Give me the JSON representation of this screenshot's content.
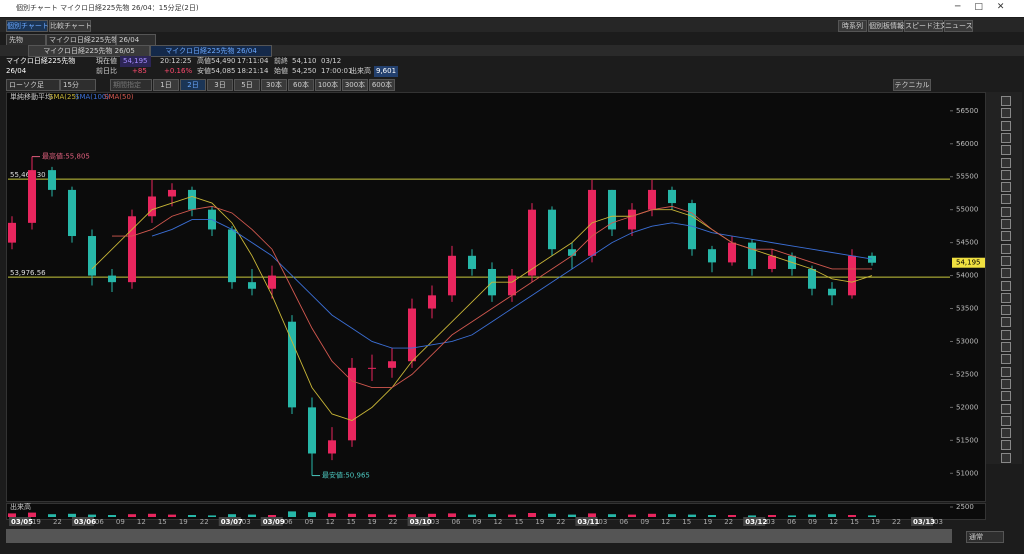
{
  "window": {
    "title": "個別チャート マイクロ日経225先物 26/04：15分足(2日)"
  },
  "tabs": [
    "個別チャート",
    "比較チャート"
  ],
  "selectors": [
    "先物",
    "マイクロ日経225先物",
    "26/04"
  ],
  "toolbar_buttons": [
    "時系列",
    "個別板情報",
    "スピード注文",
    "ニュース"
  ],
  "sub_tabs": [
    "マイクロ日経225先物 26/05",
    "マイクロ日経225先物 26/04"
  ],
  "quote": {
    "name": "マイクロ日経225先物",
    "contract": "26/04",
    "current_label": "現在値",
    "current": "54,195",
    "time": "20:12:25",
    "change_label": "前日比",
    "change": "+85",
    "change_pct": "+0.16%",
    "high_label": "高値",
    "high": "54,490",
    "high_time": "17:11:04",
    "low_label": "安値",
    "low": "54,085",
    "low_time": "18:21:14",
    "prev_label": "前終",
    "prev": "54,110",
    "prev_date": "03/12",
    "open_label": "始値",
    "open": "54,250",
    "open_time": "17:00:01",
    "volume_label": "出来高",
    "volume": "9,601"
  },
  "chart_controls": {
    "chart_type": "ローソク足",
    "interval": "15分",
    "period": "期間指定",
    "ranges": [
      "1日",
      "2日",
      "3日",
      "5日",
      "30本",
      "60本",
      "100本",
      "300本",
      "600本"
    ],
    "technical": "テクニカル",
    "view": "通常"
  },
  "chart_data": {
    "type": "candlestick",
    "indicator": "単純移動平均",
    "up_color": "#e8265e",
    "down_color": "#27b7a8",
    "open": [
      54500,
      54800,
      55600,
      55300,
      54600,
      54000,
      53900,
      54900,
      55200,
      55300,
      55000,
      54700,
      53900,
      53800,
      53300,
      52000,
      51300,
      51500,
      52600,
      52600,
      52700,
      53500,
      53700,
      54300,
      54100,
      53700,
      54000,
      55000,
      54400,
      54300,
      55300,
      54700,
      55000,
      55300,
      55100,
      54400,
      54200,
      54500,
      54100,
      54300,
      54100,
      53800,
      53700,
      54300
    ],
    "high": [
      54900,
      55805,
      55650,
      55350,
      54700,
      54100,
      55000,
      55450,
      55400,
      55350,
      55050,
      54750,
      54100,
      54150,
      53400,
      52150,
      51700,
      52750,
      52800,
      52900,
      53650,
      53850,
      54450,
      54400,
      54200,
      54100,
      55100,
      55050,
      54500,
      55450,
      55300,
      55100,
      55450,
      55350,
      55150,
      54450,
      54600,
      54550,
      54400,
      54350,
      54150,
      53900,
      54400,
      54350
    ],
    "low": [
      54400,
      54700,
      55200,
      54500,
      53850,
      53750,
      53800,
      54800,
      55050,
      54900,
      54600,
      53800,
      53700,
      53650,
      51900,
      50965,
      51200,
      51400,
      52400,
      52450,
      52600,
      53350,
      53600,
      54000,
      53600,
      53600,
      53900,
      54300,
      54100,
      54200,
      54600,
      54600,
      54900,
      55000,
      54300,
      54050,
      54150,
      54000,
      54050,
      54000,
      53700,
      53550,
      53650,
      54150
    ],
    "close": [
      54800,
      55600,
      55300,
      54600,
      54000,
      53900,
      54900,
      55200,
      55300,
      55000,
      54700,
      53900,
      53800,
      54000,
      52000,
      51300,
      51500,
      52600,
      52600,
      52700,
      53500,
      53700,
      54300,
      54100,
      53700,
      54000,
      55000,
      54400,
      54300,
      55300,
      54700,
      55000,
      55300,
      55100,
      54400,
      54200,
      54500,
      54100,
      54300,
      54100,
      53800,
      53700,
      54300,
      54195
    ],
    "series": [
      {
        "name": "SMA(25)",
        "color": "#c9b637",
        "values": [
          null,
          null,
          null,
          null,
          54100,
          54400,
          54700,
          55000,
          55100,
          55200,
          55100,
          54800,
          54300,
          53700,
          53000,
          52300,
          51900,
          51800,
          52000,
          52300,
          52700,
          53000,
          53300,
          53600,
          53900,
          53900,
          54100,
          54300,
          54500,
          54800,
          54900,
          54900,
          55000,
          55000,
          54900,
          54700,
          54500,
          54400,
          54300,
          54200,
          54100,
          53950,
          53900,
          54000
        ]
      },
      {
        "name": "SMA(100)",
        "color": "#3b6fd6",
        "values": [
          null,
          null,
          null,
          null,
          null,
          null,
          null,
          54600,
          54700,
          54850,
          54850,
          54700,
          54500,
          54300,
          54000,
          53700,
          53400,
          53200,
          53000,
          52900,
          52900,
          52950,
          53000,
          53100,
          53300,
          53500,
          53700,
          53900,
          54100,
          54300,
          54500,
          54650,
          54750,
          54800,
          54750,
          54650,
          54600,
          54550,
          54500,
          54450,
          54400,
          54350,
          54300,
          54250
        ]
      },
      {
        "name": "SMA(50)",
        "color": "#d2584f",
        "values": [
          null,
          null,
          null,
          null,
          null,
          54600,
          54600,
          54700,
          54900,
          55000,
          55050,
          54950,
          54700,
          54400,
          53800,
          53200,
          52700,
          52400,
          52300,
          52300,
          52500,
          52800,
          53100,
          53300,
          53500,
          53700,
          53900,
          54100,
          54300,
          54600,
          54800,
          54900,
          55000,
          55050,
          54950,
          54700,
          54500,
          54400,
          54400,
          54300,
          54200,
          54100,
          54100,
          54100
        ]
      }
    ],
    "ylim": [
      50640,
      56740
    ],
    "yticks": [
      51000,
      51500,
      52000,
      52500,
      53000,
      53500,
      54000,
      54500,
      55000,
      55500,
      56000,
      56500
    ],
    "hlines": [
      {
        "value": 55464.3,
        "label": "55,464.30"
      },
      {
        "value": 53976.56,
        "label": "53,976.56"
      }
    ],
    "line_color": "#c8c83c",
    "annotations": [
      {
        "value": 55805,
        "label": "最高値:55,805"
      },
      {
        "value": 50965,
        "label": "最安値:50,965"
      }
    ],
    "last_price": {
      "value": 54195,
      "label": "54,195"
    },
    "volume": {
      "label": "出来高",
      "ylim": [
        0,
        2500
      ],
      "yticks": [
        2500
      ],
      "values": [
        900,
        1100,
        700,
        800,
        600,
        500,
        700,
        800,
        600,
        500,
        400,
        700,
        600,
        500,
        1400,
        1200,
        900,
        800,
        700,
        600,
        700,
        800,
        900,
        600,
        700,
        600,
        1000,
        800,
        600,
        900,
        700,
        600,
        800,
        700,
        600,
        500,
        500,
        400,
        500,
        400,
        600,
        700,
        500,
        400
      ]
    },
    "x_tick_labels": [
      "03/05",
      "19",
      "22",
      "03/06",
      "06",
      "09",
      "12",
      "15",
      "19",
      "22",
      "03/07",
      "03",
      "03/09",
      "06",
      "09",
      "12",
      "15",
      "19",
      "22",
      "03/10",
      "03",
      "06",
      "09",
      "12",
      "15",
      "19",
      "22",
      "03/11",
      "03",
      "06",
      "09",
      "12",
      "15",
      "19",
      "22",
      "03/12",
      "03",
      "06",
      "09",
      "12",
      "15",
      "19",
      "22",
      "03/13",
      "03"
    ]
  }
}
